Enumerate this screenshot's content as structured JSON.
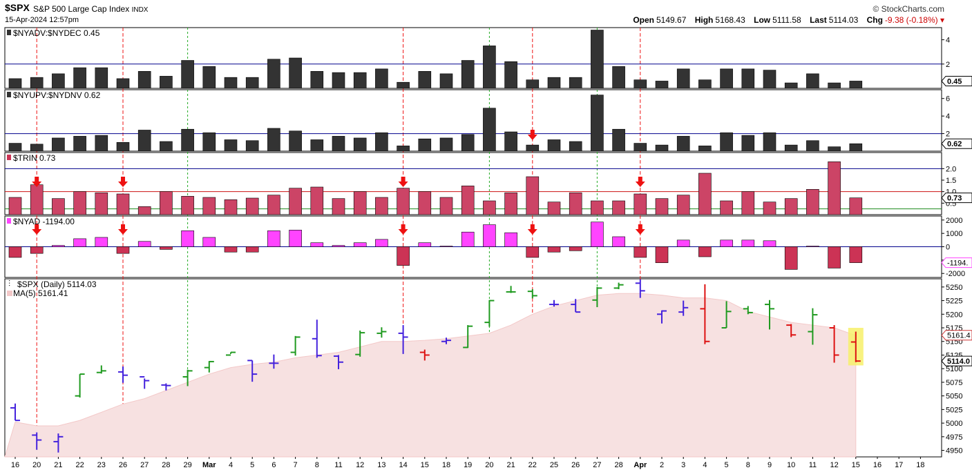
{
  "header": {
    "symbol": "$SPX",
    "description": "S&P 500 Large Cap Index",
    "exchange": "INDX",
    "datetime": "15-Apr-2024 12:57pm",
    "brand": "© StockCharts.com",
    "open_label": "Open",
    "open": "5149.67",
    "high_label": "High",
    "high": "5168.43",
    "low_label": "Low",
    "low": "5111.58",
    "last_label": "Last",
    "last": "5114.03",
    "chg_label": "Chg",
    "chg": "-9.38 (-0.18%)"
  },
  "x_labels": [
    "16",
    "20",
    "21",
    "22",
    "23",
    "26",
    "27",
    "28",
    "29",
    "Mar",
    "4",
    "5",
    "6",
    "7",
    "8",
    "11",
    "12",
    "13",
    "14",
    "15",
    "18",
    "19",
    "20",
    "21",
    "22",
    "25",
    "26",
    "27",
    "28",
    "Apr",
    "2",
    "3",
    "4",
    "5",
    "8",
    "9",
    "10",
    "11",
    "12",
    "15",
    "16",
    "17",
    "18"
  ],
  "colors": {
    "up": "#1f9a1f",
    "down": "#dd1111",
    "neutral": "#4422dd",
    "bar": "#333333",
    "trin": "#cc4466",
    "ad_pos": "#ff44ff",
    "ad_neg": "#cc3355",
    "ma": "#f7e1e1",
    "refline": "#00008b"
  },
  "chart_data": [
    {
      "type": "bar",
      "title": "$NYADV:$NYDEC 0.45",
      "last_label": "0.45",
      "yticks": [
        "2",
        "4"
      ],
      "ylim": [
        0,
        5
      ],
      "reference_line": 2,
      "values": [
        0.8,
        0.9,
        1.2,
        1.7,
        1.7,
        0.8,
        1.4,
        1.0,
        2.3,
        1.8,
        0.9,
        0.9,
        2.4,
        2.5,
        1.4,
        1.3,
        1.3,
        1.6,
        0.5,
        1.4,
        1.2,
        2.3,
        3.5,
        2.2,
        0.7,
        0.9,
        0.9,
        4.8,
        1.8,
        0.7,
        0.6,
        1.6,
        0.7,
        1.6,
        1.6,
        1.5,
        0.45,
        1.2,
        0.45,
        0.6
      ]
    },
    {
      "type": "bar",
      "title": "$NYUPV:$NYDNV 0.62",
      "last_label": "0.62",
      "yticks": [
        "2",
        "4",
        "6"
      ],
      "ylim": [
        0,
        7
      ],
      "reference_line": 2,
      "values": [
        0.9,
        0.8,
        1.5,
        1.7,
        1.8,
        1.0,
        2.4,
        1.1,
        2.5,
        2.1,
        1.3,
        1.2,
        2.6,
        2.3,
        1.3,
        1.7,
        1.5,
        2.1,
        0.6,
        1.4,
        1.5,
        1.9,
        4.9,
        2.2,
        0.7,
        1.3,
        1.1,
        6.4,
        2.5,
        0.9,
        0.7,
        1.7,
        0.6,
        2.1,
        1.8,
        2.1,
        0.7,
        1.2,
        0.5,
        0.85
      ]
    },
    {
      "type": "bar",
      "title": "$TRIN 0.73",
      "last_label": "0.73",
      "yticks": [
        "0.5",
        "1.0",
        "1.5",
        "2.0"
      ],
      "ylim": [
        0,
        2.7
      ],
      "reference_lines": [
        0.25,
        1.0,
        2.0
      ],
      "values": [
        0.75,
        1.3,
        0.7,
        1.0,
        0.95,
        0.9,
        0.35,
        1.0,
        0.8,
        0.75,
        0.65,
        0.72,
        0.85,
        1.15,
        1.2,
        0.7,
        1.0,
        0.75,
        1.15,
        1.0,
        0.75,
        1.25,
        0.6,
        0.95,
        1.65,
        0.55,
        0.95,
        0.6,
        0.6,
        0.9,
        0.7,
        0.85,
        1.8,
        0.6,
        1.0,
        0.55,
        0.7,
        1.1,
        2.3,
        0.73
      ]
    },
    {
      "type": "bar",
      "title": "$NYAD -1194.00",
      "last_label": "-1194.",
      "yticks": [
        "2000",
        "1000",
        "0",
        "-1000",
        "-2000"
      ],
      "ylim": [
        -2300,
        2300
      ],
      "values": [
        -800,
        -500,
        100,
        600,
        700,
        -500,
        400,
        -200,
        1200,
        700,
        -400,
        -400,
        1200,
        1250,
        300,
        100,
        300,
        550,
        -1400,
        300,
        50,
        1100,
        1650,
        1050,
        -800,
        -400,
        -300,
        1850,
        750,
        -800,
        -1200,
        500,
        -750,
        500,
        500,
        450,
        -1700,
        50,
        -1600,
        -1194
      ]
    },
    {
      "type": "ohlc",
      "title": "$SPX (Daily) 5114.03",
      "ma_label": "MA(5) 5161.41",
      "ma_tag": "5161.4",
      "last_tag": "5114.0",
      "yticks": [
        "4950",
        "4975",
        "5000",
        "5025",
        "5050",
        "5075",
        "5100",
        "5125",
        "5150",
        "5175",
        "5200",
        "5225",
        "5250"
      ],
      "ylim": [
        4938,
        5265
      ],
      "ohlc": [
        [
          5028,
          5036,
          5005,
          5005
        ],
        [
          4978,
          4983,
          4951,
          4969
        ],
        [
          4966,
          4981,
          4946,
          4975
        ],
        [
          5050,
          5090,
          5047,
          5090
        ],
        [
          5093,
          5106,
          5091,
          5096
        ],
        [
          5094,
          5104,
          5074,
          5088
        ],
        [
          5085,
          5082,
          5063,
          5078
        ],
        [
          5070,
          5073,
          5060,
          5069
        ],
        [
          5085,
          5098,
          5068,
          5096
        ],
        [
          5102,
          5114,
          5093,
          5113
        ],
        [
          5125,
          5130,
          5127,
          5130
        ],
        [
          5115,
          5115,
          5076,
          5090
        ],
        [
          5110,
          5126,
          5100,
          5110
        ],
        [
          5130,
          5160,
          5124,
          5158
        ],
        [
          5155,
          5190,
          5120,
          5124
        ],
        [
          5123,
          5125,
          5099,
          5112
        ],
        [
          5126,
          5170,
          5122,
          5166
        ],
        [
          5165,
          5176,
          5157,
          5168
        ],
        [
          5165,
          5180,
          5127,
          5158
        ],
        [
          5130,
          5135,
          5115,
          5125
        ],
        [
          5150,
          5157,
          5145,
          5152
        ],
        [
          5139,
          5180,
          5138,
          5178
        ],
        [
          5185,
          5226,
          5177,
          5225
        ],
        [
          5241,
          5252,
          5239,
          5241
        ],
        [
          5242,
          5246,
          5229,
          5234
        ],
        [
          5218,
          5226,
          5214,
          5218
        ],
        [
          5218,
          5228,
          5204,
          5204
        ],
        [
          5226,
          5250,
          5213,
          5248
        ],
        [
          5248,
          5258,
          5246,
          5254
        ],
        [
          5257,
          5264,
          5230,
          5243
        ],
        [
          5200,
          5207,
          5183,
          5206
        ],
        [
          5204,
          5225,
          5197,
          5212
        ],
        [
          5210,
          5255,
          5145,
          5150
        ],
        [
          5175,
          5224,
          5175,
          5205
        ],
        [
          5210,
          5215,
          5200,
          5203
        ],
        [
          5218,
          5226,
          5172,
          5210
        ],
        [
          5180,
          5182,
          5158,
          5162
        ],
        [
          5168,
          5211,
          5144,
          5199
        ],
        [
          5175,
          5180,
          5111,
          5125
        ],
        [
          5149,
          5168,
          5112,
          5114
        ]
      ],
      "directions": [
        "n",
        "n",
        "n",
        "u",
        "u",
        "n",
        "n",
        "n",
        "u",
        "u",
        "u",
        "n",
        "n",
        "u",
        "n",
        "n",
        "u",
        "u",
        "n",
        "d",
        "n",
        "u",
        "u",
        "u",
        "u",
        "n",
        "n",
        "u",
        "u",
        "n",
        "n",
        "n",
        "d",
        "u",
        "u",
        "u",
        "d",
        "u",
        "d",
        "d"
      ],
      "ma": [
        5002,
        4995,
        4995,
        5005,
        5020,
        5035,
        5045,
        5060,
        5075,
        5090,
        5102,
        5108,
        5112,
        5120,
        5125,
        5130,
        5140,
        5150,
        5150,
        5152,
        5155,
        5160,
        5165,
        5180,
        5200,
        5215,
        5225,
        5235,
        5238,
        5238,
        5235,
        5230,
        5230,
        5225,
        5205,
        5195,
        5185,
        5180,
        5175,
        5161
      ]
    }
  ],
  "event_lines": {
    "red": [
      1,
      5,
      18,
      24,
      29
    ],
    "green": [
      8,
      22,
      27
    ],
    "arrows": {
      "trin": [
        1,
        5,
        18,
        29
      ],
      "ad": [
        1,
        5,
        18,
        24,
        29
      ],
      "upv": [
        24
      ]
    }
  }
}
